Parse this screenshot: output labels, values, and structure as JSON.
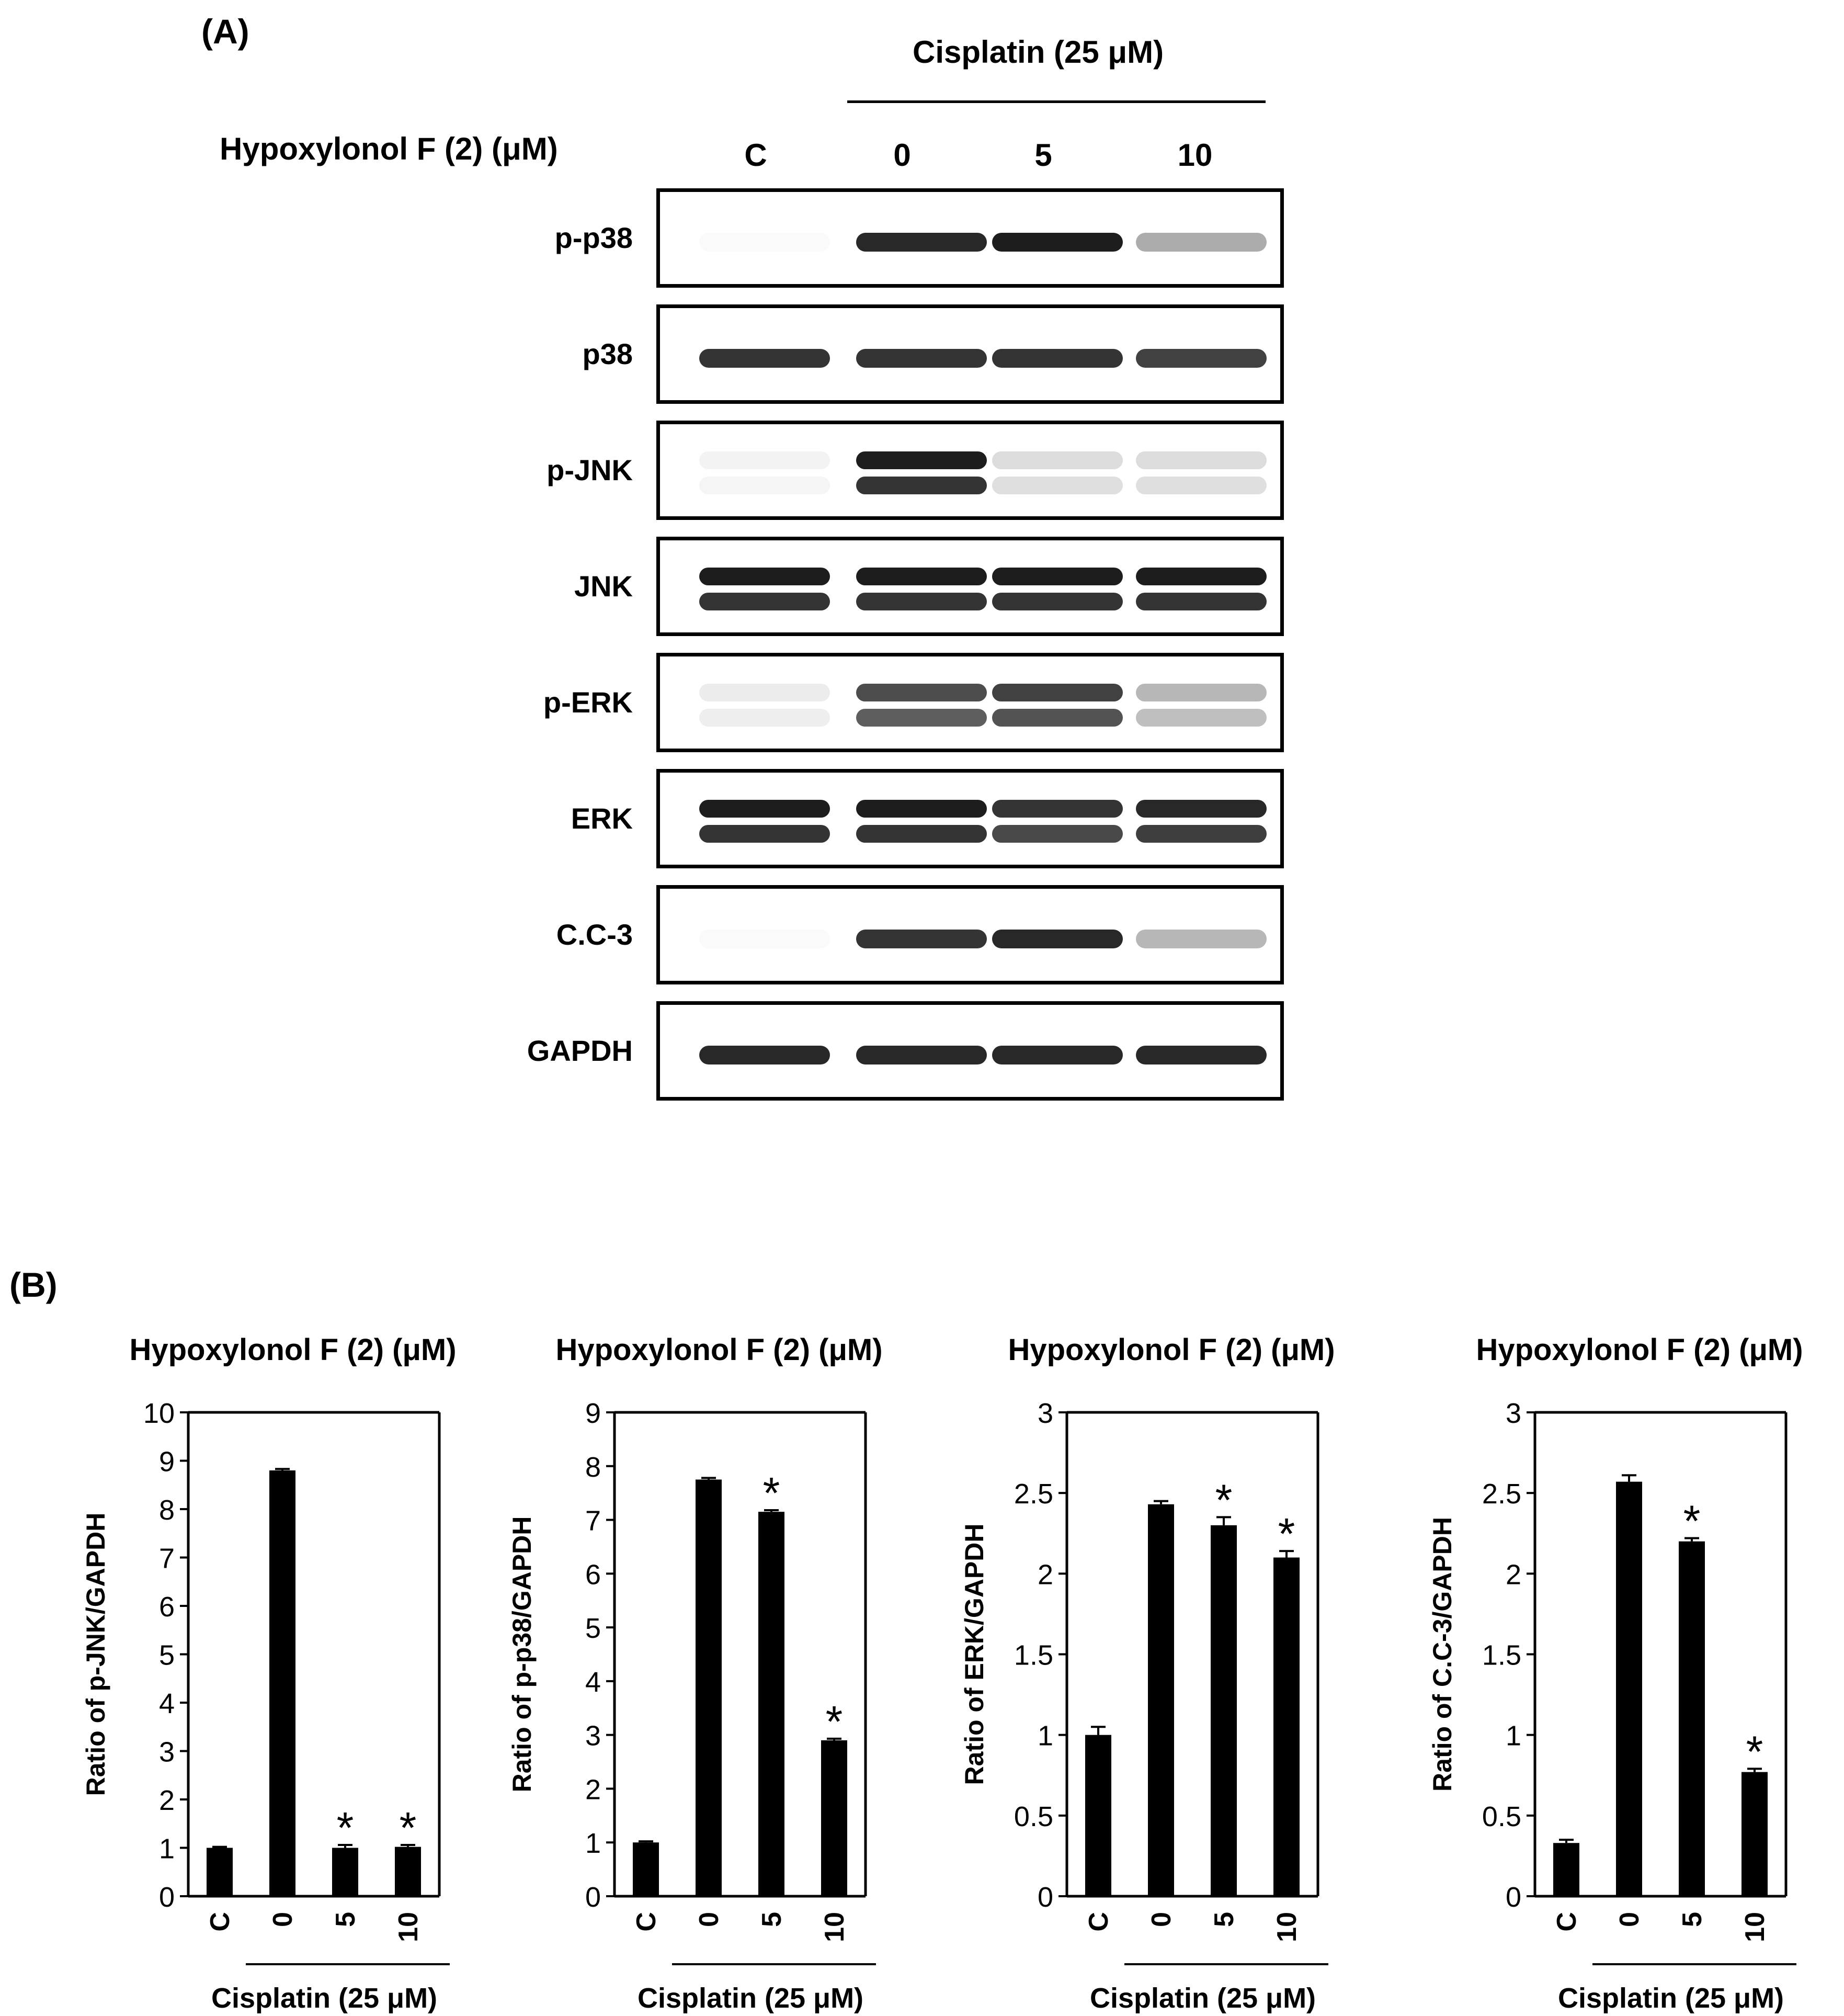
{
  "panel_a": {
    "label": "(A)",
    "treatment_header": "Cisplatin (25 μM)",
    "row_label": "Hypoxylonol F (2) (μM)",
    "lanes": [
      "C",
      "0",
      "5",
      "10"
    ],
    "blots": [
      {
        "name": "p-p38",
        "bands": [
          0.02,
          0.9,
          0.95,
          0.35
        ]
      },
      {
        "name": "p38",
        "bands": [
          0.85,
          0.85,
          0.85,
          0.8
        ]
      },
      {
        "name": "p-JNK",
        "bands": [
          0.05,
          0.95,
          0.15,
          0.15
        ]
      },
      {
        "name": "JNK",
        "bands": [
          0.95,
          0.95,
          0.95,
          0.95
        ]
      },
      {
        "name": "p-ERK",
        "bands": [
          0.08,
          0.75,
          0.8,
          0.3
        ]
      },
      {
        "name": "ERK",
        "bands": [
          0.95,
          0.95,
          0.85,
          0.9
        ]
      },
      {
        "name": "C.C-3",
        "bands": [
          0.02,
          0.85,
          0.9,
          0.3
        ]
      },
      {
        "name": "GAPDH",
        "bands": [
          0.9,
          0.9,
          0.9,
          0.9
        ]
      }
    ]
  },
  "panel_b": {
    "label": "(B)"
  },
  "colors": {
    "bar": "#000000",
    "band": "#111111",
    "background": "#ffffff"
  },
  "chart_data": [
    {
      "type": "bar",
      "title": "Hypoxylonol F (2) (μM)",
      "ylabel": "Ratio of p-JNK/GAPDH",
      "xgroup_label": "Cisplatin (25 μM)",
      "categories": [
        "C",
        "0",
        "5",
        "10"
      ],
      "values": [
        1.0,
        8.8,
        1.0,
        1.02
      ],
      "errors": [
        0.02,
        0.03,
        0.06,
        0.04
      ],
      "significant": [
        false,
        false,
        true,
        true
      ],
      "ylim": [
        0,
        10
      ],
      "yticks": [
        0,
        1,
        2,
        3,
        4,
        5,
        6,
        7,
        8,
        9,
        10
      ],
      "ytick_labels": [
        "0",
        "1",
        "2",
        "3",
        "4",
        "5",
        "6",
        "7",
        "8",
        "9",
        "10"
      ],
      "star": "*"
    },
    {
      "type": "bar",
      "title": "Hypoxylonol F (2) (μM)",
      "ylabel": "Ratio of p-p38/GAPDH",
      "xgroup_label": "Cisplatin (25 μM)",
      "categories": [
        "C",
        "0",
        "5",
        "10"
      ],
      "values": [
        1.0,
        7.75,
        7.15,
        2.9
      ],
      "errors": [
        0.02,
        0.03,
        0.03,
        0.03
      ],
      "significant": [
        false,
        false,
        true,
        true
      ],
      "ylim": [
        0,
        9
      ],
      "yticks": [
        0,
        1,
        2,
        3,
        4,
        5,
        6,
        7,
        8,
        9
      ],
      "ytick_labels": [
        "0",
        "1",
        "2",
        "3",
        "4",
        "5",
        "6",
        "7",
        "8",
        "9"
      ],
      "star": "*"
    },
    {
      "type": "bar",
      "title": "Hypoxylonol F (2) (μM)",
      "ylabel": "Ratio of ERK/GAPDH",
      "xgroup_label": "Cisplatin (25 μM)",
      "categories": [
        "C",
        "0",
        "5",
        "10"
      ],
      "values": [
        1.0,
        2.43,
        2.3,
        2.1
      ],
      "errors": [
        0.05,
        0.02,
        0.05,
        0.04
      ],
      "significant": [
        false,
        false,
        true,
        true
      ],
      "ylim": [
        0,
        3
      ],
      "yticks": [
        0,
        0.5,
        1,
        1.5,
        2,
        2.5,
        3
      ],
      "ytick_labels": [
        "0",
        "0.5",
        "1",
        "1.5",
        "2",
        "2.5",
        "3"
      ],
      "star": "*"
    },
    {
      "type": "bar",
      "title": "Hypoxylonol F (2) (μM)",
      "ylabel": "Ratio of C.C-3/GAPDH",
      "xgroup_label": "Cisplatin (25 μM)",
      "categories": [
        "C",
        "0",
        "5",
        "10"
      ],
      "values": [
        0.33,
        2.57,
        2.2,
        0.77
      ],
      "errors": [
        0.02,
        0.04,
        0.02,
        0.02
      ],
      "significant": [
        false,
        false,
        true,
        true
      ],
      "ylim": [
        0,
        3
      ],
      "yticks": [
        0,
        0.5,
        1,
        1.5,
        2,
        2.5,
        3
      ],
      "ytick_labels": [
        "0",
        "0.5",
        "1",
        "1.5",
        "2",
        "2.5",
        "3"
      ],
      "star": "*"
    }
  ]
}
